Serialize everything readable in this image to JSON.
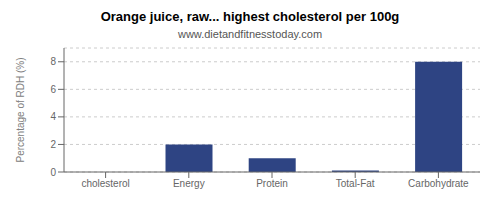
{
  "chart_data": {
    "type": "bar",
    "title": "Orange juice, raw... highest cholesterol per 100g",
    "subtitle": "www.dietandfitnesstoday.com",
    "categories": [
      "cholesterol",
      "Energy",
      "Protein",
      "Total-Fat",
      "Carbohydrate"
    ],
    "values": [
      0,
      2.0,
      1.0,
      0.1,
      8.0
    ],
    "color": "#2e4483",
    "ylabel": "Percentage of RDH (%)",
    "ylim": [
      0,
      9
    ],
    "yticks": [
      0,
      2,
      4,
      6,
      8
    ],
    "grid": true
  }
}
